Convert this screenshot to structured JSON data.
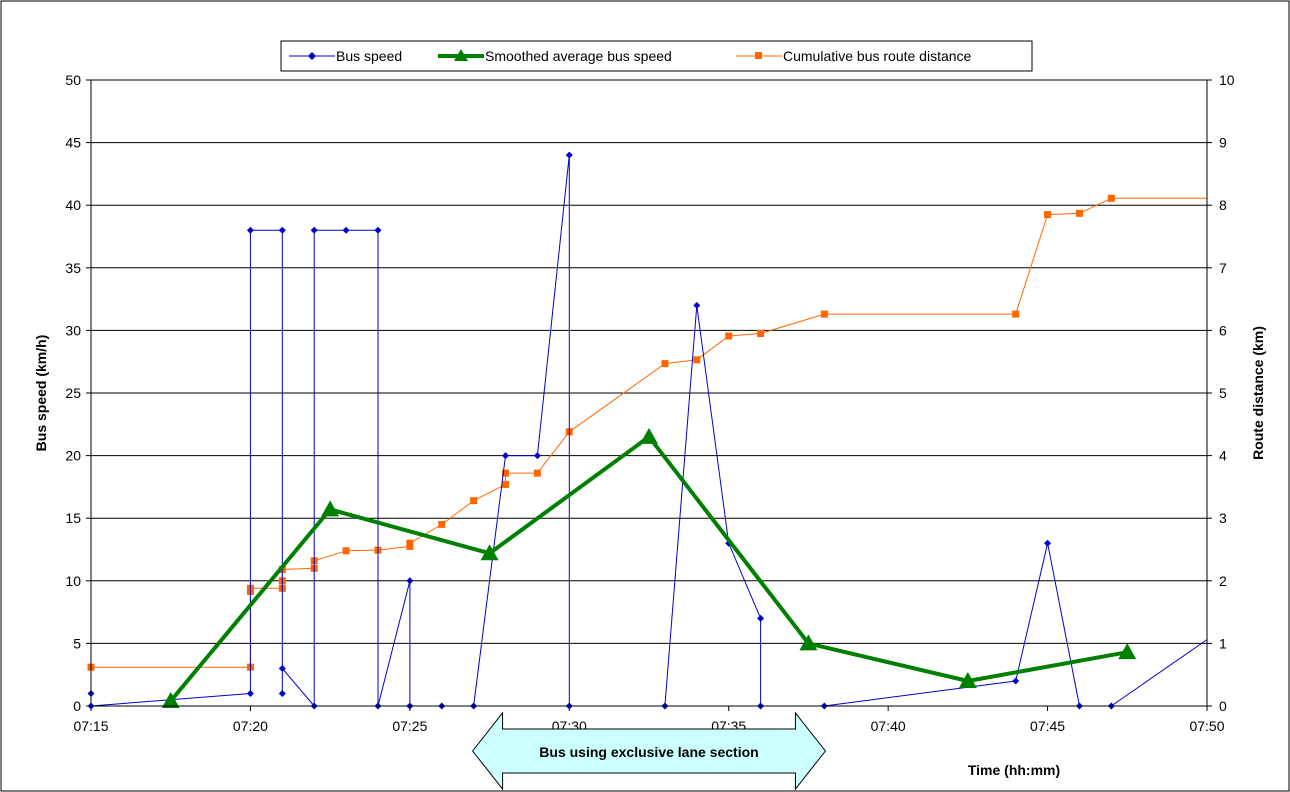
{
  "chart_data": {
    "type": "line",
    "x_axis": {
      "label": "Time (hh:mm)",
      "range_minutes": [
        0,
        35
      ],
      "ticks": [
        {
          "value": 0,
          "label": "07:15"
        },
        {
          "value": 5,
          "label": "07:20"
        },
        {
          "value": 10,
          "label": "07:25"
        },
        {
          "value": 15,
          "label": "07:30"
        },
        {
          "value": 20,
          "label": "07:35"
        },
        {
          "value": 25,
          "label": "07:40"
        },
        {
          "value": 30,
          "label": "07:45"
        },
        {
          "value": 35,
          "label": "07:50"
        }
      ]
    },
    "y_left": {
      "label": "Bus speed (km/h)",
      "range": [
        0,
        50
      ],
      "ticks": [
        0,
        5,
        10,
        15,
        20,
        25,
        30,
        35,
        40,
        45,
        50
      ]
    },
    "y_right": {
      "label": "Route distance (km)",
      "range": [
        0,
        10
      ],
      "ticks": [
        0,
        1,
        2,
        3,
        4,
        5,
        6,
        7,
        8,
        9,
        10
      ]
    },
    "grid": "horizontal",
    "legend_position": "top",
    "series": [
      {
        "name": "Bus speed",
        "axis": "left",
        "color": "#0000cc",
        "marker": "diamond",
        "points": [
          [
            -0.5,
            0.5
          ],
          [
            0,
            1
          ],
          [
            0,
            0
          ],
          [
            5,
            1
          ],
          [
            5,
            38
          ],
          [
            6,
            38
          ],
          [
            6,
            1
          ],
          [
            6,
            3
          ],
          [
            7,
            0
          ],
          [
            7,
            38
          ],
          [
            8,
            38
          ],
          [
            9,
            38
          ],
          [
            9,
            0
          ],
          [
            10,
            10
          ],
          [
            10,
            0
          ],
          [
            11,
            0
          ],
          [
            12,
            0
          ],
          [
            13,
            20
          ],
          [
            14,
            20
          ],
          [
            15,
            44
          ],
          [
            15,
            0
          ],
          [
            18,
            0
          ],
          [
            19,
            32
          ],
          [
            20,
            13
          ],
          [
            21,
            7
          ],
          [
            21,
            0
          ],
          [
            23,
            0
          ],
          [
            29,
            2
          ],
          [
            30,
            13
          ],
          [
            31,
            0
          ],
          [
            32,
            0
          ],
          [
            35,
            5.3
          ]
        ]
      },
      {
        "name": "Smoothed average bus speed",
        "axis": "left",
        "color": "#008000",
        "marker": "triangle",
        "points": [
          [
            2.5,
            0.4
          ],
          [
            7.5,
            15.7
          ],
          [
            12.5,
            12.2
          ],
          [
            17.5,
            21.5
          ],
          [
            22.5,
            5
          ],
          [
            27.5,
            2
          ],
          [
            32.5,
            4.3
          ]
        ]
      },
      {
        "name": "Cumulative bus route distance",
        "axis": "right",
        "color": "#ff6600",
        "marker": "square",
        "points": [
          [
            0,
            0.62
          ],
          [
            5,
            0.62
          ],
          [
            5,
            1.83
          ],
          [
            5,
            1.88
          ],
          [
            6,
            1.88
          ],
          [
            6,
            2.0
          ],
          [
            6,
            2.18
          ],
          [
            7,
            2.2
          ],
          [
            7,
            2.32
          ],
          [
            8,
            2.48
          ],
          [
            9,
            2.49
          ],
          [
            10,
            2.55
          ],
          [
            10,
            2.6
          ],
          [
            11,
            2.9
          ],
          [
            12,
            3.28
          ],
          [
            13,
            3.54
          ],
          [
            13,
            3.72
          ],
          [
            14,
            3.72
          ],
          [
            15,
            4.38
          ],
          [
            18,
            5.47
          ],
          [
            19,
            5.53
          ],
          [
            20,
            5.91
          ],
          [
            21,
            5.95
          ],
          [
            23,
            6.26
          ],
          [
            29,
            6.26
          ],
          [
            30,
            7.85
          ],
          [
            31,
            7.87
          ],
          [
            32,
            8.11
          ],
          [
            35,
            8.11
          ]
        ]
      }
    ],
    "annotations": [
      {
        "text": "Bus using exclusive lane section",
        "from_minutes": 12.5,
        "to_minutes": 22.5,
        "shape": "double-arrow",
        "color": "#ccffff"
      }
    ]
  }
}
